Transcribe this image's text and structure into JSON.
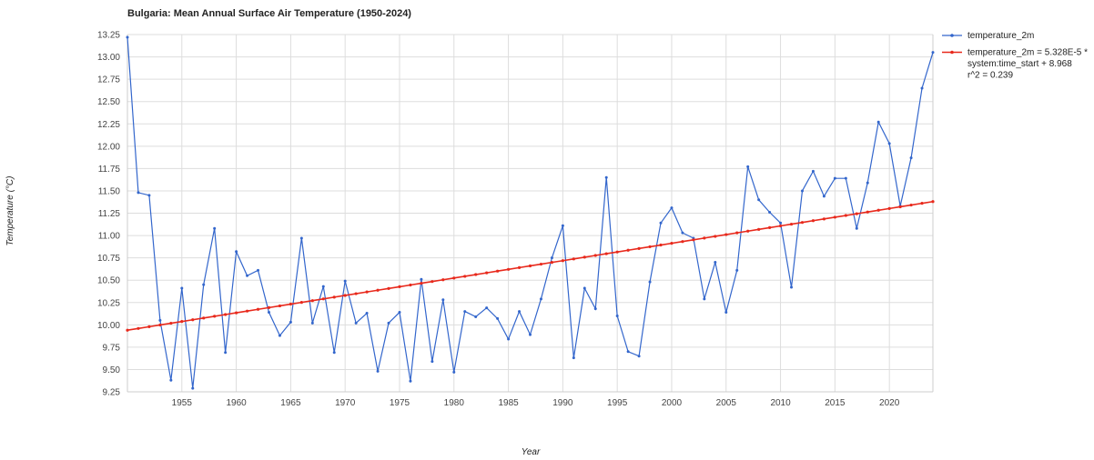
{
  "chart_data": {
    "type": "line",
    "title": "Bulgaria: Mean Annual Surface Air Temperature (1950-2024)",
    "xlabel": "Year",
    "ylabel": "Temperature (°C)",
    "xlim": [
      1950,
      2024
    ],
    "ylim": [
      9.25,
      13.25
    ],
    "x_ticks": [
      1955,
      1960,
      1965,
      1970,
      1975,
      1980,
      1985,
      1990,
      1995,
      2000,
      2005,
      2010,
      2015,
      2020
    ],
    "y_ticks": [
      9.25,
      9.5,
      9.75,
      10.0,
      10.25,
      10.5,
      10.75,
      11.0,
      11.25,
      11.5,
      11.75,
      12.0,
      12.25,
      12.5,
      12.75,
      13.0,
      13.25
    ],
    "y_tick_labels": [
      "9.25",
      "9.50",
      "9.75",
      "10.00",
      "10.25",
      "10.50",
      "10.75",
      "11.00",
      "11.25",
      "11.50",
      "11.75",
      "12.00",
      "12.25",
      "12.50",
      "12.75",
      "13.00",
      "13.25"
    ],
    "grid": true,
    "legend_position": "right",
    "series": [
      {
        "name": "temperature_2m",
        "color": "#3366cc",
        "x": [
          1950,
          1951,
          1952,
          1953,
          1954,
          1955,
          1956,
          1957,
          1958,
          1959,
          1960,
          1961,
          1962,
          1963,
          1964,
          1965,
          1966,
          1967,
          1968,
          1969,
          1970,
          1971,
          1972,
          1973,
          1974,
          1975,
          1976,
          1977,
          1978,
          1979,
          1980,
          1981,
          1982,
          1983,
          1984,
          1985,
          1986,
          1987,
          1988,
          1989,
          1990,
          1991,
          1992,
          1993,
          1994,
          1995,
          1996,
          1997,
          1998,
          1999,
          2000,
          2001,
          2002,
          2003,
          2004,
          2005,
          2006,
          2007,
          2008,
          2009,
          2010,
          2011,
          2012,
          2013,
          2014,
          2015,
          2016,
          2017,
          2018,
          2019,
          2020,
          2021,
          2022,
          2023,
          2024
        ],
        "y": [
          13.22,
          11.48,
          11.45,
          10.05,
          9.38,
          10.41,
          9.29,
          10.45,
          11.08,
          9.69,
          10.82,
          10.55,
          10.61,
          10.14,
          9.88,
          10.03,
          10.97,
          10.02,
          10.43,
          9.69,
          10.49,
          10.02,
          10.13,
          9.48,
          10.02,
          10.14,
          9.37,
          10.51,
          9.59,
          10.28,
          9.47,
          10.15,
          10.09,
          10.19,
          10.07,
          9.84,
          10.15,
          9.89,
          10.29,
          10.75,
          11.11,
          9.63,
          10.41,
          10.18,
          11.65,
          10.1,
          9.7,
          9.65,
          10.48,
          11.14,
          11.31,
          11.03,
          10.97,
          10.29,
          10.7,
          10.14,
          10.61,
          11.77,
          11.4,
          11.26,
          11.14,
          10.42,
          11.5,
          11.72,
          11.44,
          11.64,
          11.64,
          11.08,
          11.59,
          12.27,
          12.03,
          11.33,
          11.87,
          12.65,
          13.05
        ]
      },
      {
        "name": "temperature_2m = 5.328E-5 * system:time_start + 8.968 r^2 = 0.239",
        "legend_lines": [
          "temperature_2m = 5.328E-5 *",
          "system:time_start + 8.968",
          "r^2 = 0.239"
        ],
        "color": "#e8291c",
        "trend": true,
        "x": [
          1950,
          2024
        ],
        "y": [
          9.94,
          11.38
        ]
      }
    ]
  }
}
